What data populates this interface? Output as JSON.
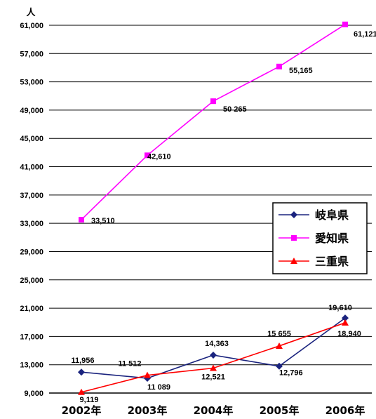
{
  "chart_data": {
    "type": "line",
    "unit_label": "人",
    "categories": [
      "2002年",
      "2003年",
      "2004年",
      "2005年",
      "2006年"
    ],
    "ylim": [
      9000,
      61000
    ],
    "yticks": [
      9000,
      13000,
      17000,
      21000,
      25000,
      29000,
      33000,
      37000,
      41000,
      45000,
      49000,
      53000,
      57000,
      61000
    ],
    "ytick_labels": [
      "9,000",
      "13,000",
      "17,000",
      "21,000",
      "25,000",
      "29,000",
      "33,000",
      "37,000",
      "41,000",
      "45,000",
      "49,000",
      "53,000",
      "57,000",
      "61,000"
    ],
    "grid": true,
    "legend_position": "right-middle",
    "series": [
      {
        "name": "岐阜県",
        "color": "#1a237e",
        "marker": "diamond",
        "values": [
          11956,
          11089,
          14363,
          12796,
          19610
        ],
        "labels": [
          "11,956",
          "11 089",
          "14,363",
          "12,796",
          "19,610"
        ]
      },
      {
        "name": "愛知県",
        "color": "#ff00ff",
        "marker": "square",
        "values": [
          33510,
          42610,
          50265,
          55165,
          61121
        ],
        "labels": [
          "33,510",
          "42,610",
          "50 265",
          "55,165",
          "61,121"
        ]
      },
      {
        "name": "三重県",
        "color": "#ff0000",
        "marker": "triangle",
        "values": [
          9119,
          11512,
          12521,
          15655,
          18940
        ],
        "labels": [
          "9,119",
          "11 512",
          "12,521",
          "15 655",
          "18,940"
        ]
      }
    ]
  }
}
